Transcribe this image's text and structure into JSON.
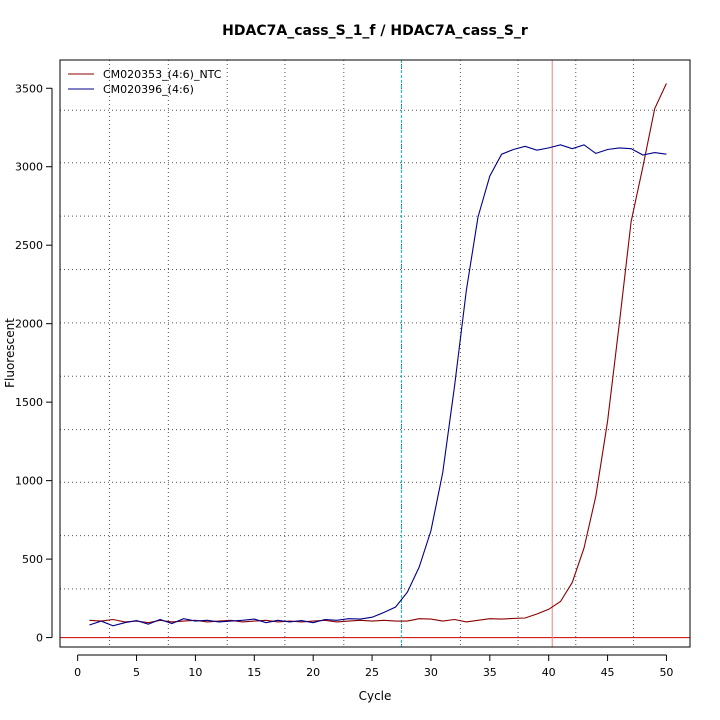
{
  "chart_data": {
    "type": "line",
    "title": "HDAC7A_cass_S_1_f / HDAC7A_cass_S_r",
    "xlabel": "Cycle",
    "ylabel": "Fluorescent",
    "xlim": [
      -1.5,
      52
    ],
    "ylim": [
      -60,
      3680
    ],
    "xticks": [
      0,
      5,
      10,
      15,
      20,
      25,
      30,
      35,
      40,
      45,
      50
    ],
    "yticks": [
      0,
      500,
      1000,
      1500,
      2000,
      2500,
      3000,
      3500
    ],
    "legend_position": "top-left",
    "grid": "dotted",
    "grid_x": [
      2.7,
      7.7,
      12.7,
      17.6,
      22.6,
      27.5,
      32.5,
      37.4,
      42.3,
      47.2
    ],
    "grid_y": [
      310,
      650,
      990,
      1325,
      1665,
      2005,
      2345,
      2685,
      3025,
      3360
    ],
    "threshold": {
      "value": 0,
      "color": "#cc0000"
    },
    "vlines": [
      {
        "x": 27.5,
        "color": "#00cccc",
        "style": "dashed"
      },
      {
        "x": 40.3,
        "color": "#f08080",
        "style": "solid"
      }
    ],
    "series": [
      {
        "name": "CM020353_(4:6)_NTC",
        "color": "#8b0000",
        "x": [
          1,
          2,
          3,
          4,
          5,
          6,
          7,
          8,
          9,
          10,
          11,
          12,
          13,
          14,
          15,
          16,
          17,
          18,
          19,
          20,
          21,
          22,
          23,
          24,
          25,
          26,
          27,
          28,
          29,
          30,
          31,
          32,
          33,
          34,
          35,
          36,
          37,
          38,
          39,
          40,
          41,
          42,
          43,
          44,
          45,
          46,
          47,
          48,
          49,
          50
        ],
        "y": [
          110,
          105,
          115,
          100,
          105,
          95,
          110,
          100,
          105,
          110,
          100,
          105,
          110,
          100,
          105,
          110,
          100,
          105,
          100,
          105,
          110,
          100,
          105,
          110,
          105,
          110,
          105,
          105,
          120,
          118,
          105,
          115,
          100,
          110,
          120,
          118,
          122,
          125,
          150,
          180,
          230,
          350,
          570,
          900,
          1380,
          2000,
          2650,
          3000,
          3370,
          3530
        ]
      },
      {
        "name": "CM020396_(4:6)",
        "color": "#00008b",
        "x": [
          1,
          2,
          3,
          4,
          5,
          6,
          7,
          8,
          9,
          10,
          11,
          12,
          13,
          14,
          15,
          16,
          17,
          18,
          19,
          20,
          21,
          22,
          23,
          24,
          25,
          26,
          27,
          28,
          29,
          30,
          31,
          32,
          33,
          34,
          35,
          36,
          37,
          38,
          39,
          40,
          41,
          42,
          43,
          44,
          45,
          46,
          47,
          48,
          49,
          50
        ],
        "y": [
          80,
          105,
          75,
          95,
          108,
          85,
          115,
          90,
          120,
          105,
          110,
          100,
          105,
          110,
          118,
          95,
          110,
          100,
          108,
          95,
          115,
          110,
          120,
          118,
          130,
          160,
          195,
          290,
          450,
          680,
          1050,
          1600,
          2210,
          2680,
          2940,
          3080,
          3110,
          3130,
          3105,
          3120,
          3140,
          3115,
          3140,
          3085,
          3110,
          3120,
          3115,
          3075,
          3090,
          3080
        ]
      }
    ]
  }
}
